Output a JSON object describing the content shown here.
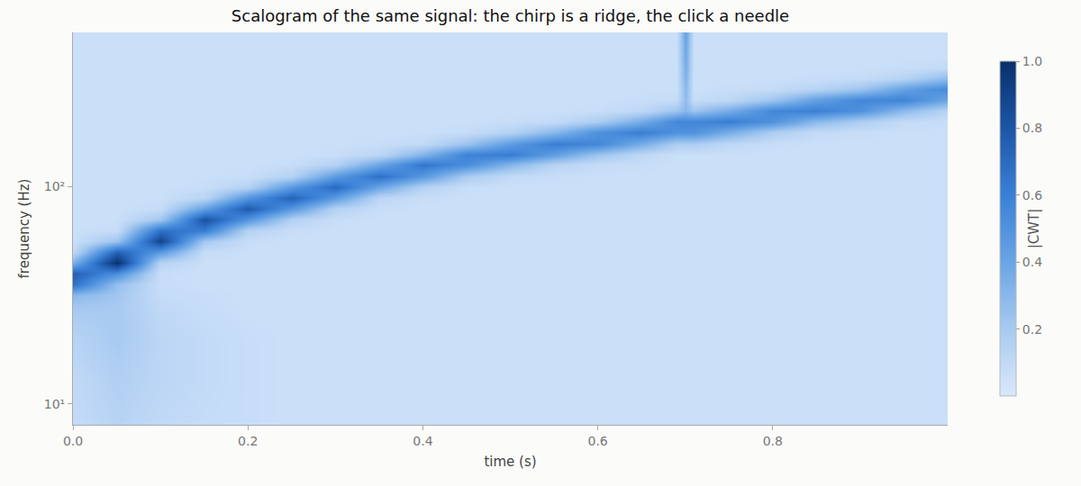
{
  "chart_data": {
    "type": "heatmap",
    "title": "Scalogram of the same signal: the chirp is a ridge, the click a needle",
    "xlabel": "time (s)",
    "ylabel": "frequency (Hz)",
    "colorbar_title": "|CWT|",
    "log": "y",
    "grid": false,
    "xlim": [
      0,
      1.0
    ],
    "ylim": [
      8,
      515
    ],
    "xticks": [
      {
        "value": 0,
        "label": "0.0"
      },
      0.2,
      0.4,
      0.6,
      0.8
    ],
    "yticks": [
      {
        "value": 10,
        "label": "10¹"
      },
      {
        "value": 100,
        "label": "10²"
      }
    ],
    "zlim": [
      0,
      1.0
    ],
    "zticks": [
      0.2,
      0.4,
      0.6,
      0.8,
      {
        "value": 1.0,
        "label": "1.0"
      }
    ],
    "x": [
      0,
      0.05,
      0.1,
      0.15,
      0.2,
      0.25,
      0.3,
      0.35,
      0.4,
      0.45,
      0.5,
      0.55,
      0.6,
      0.65,
      0.69,
      0.7,
      0.71,
      0.75,
      0.8,
      0.85,
      0.9,
      0.95,
      1.0
    ],
    "y": [
      8,
      12.6,
      20,
      25.1,
      28.2,
      31.6,
      35.5,
      39.8,
      44.7,
      50.1,
      56.2,
      63.1,
      70.8,
      79.4,
      89.1,
      100,
      112,
      126,
      141,
      158,
      178,
      200,
      224,
      251,
      282,
      316,
      355,
      398,
      447,
      501
    ],
    "z": [
      [
        0.08,
        0.14,
        0.1,
        0.08,
        0.07,
        0.06,
        0.06,
        0.06,
        0.06,
        0.06,
        0.06,
        0.06,
        0.06,
        0.06,
        0.06,
        0.06,
        0.06,
        0.06,
        0.06,
        0.06,
        0.06,
        0.06,
        0.06
      ],
      [
        0.1,
        0.16,
        0.12,
        0.09,
        0.07,
        0.06,
        0.06,
        0.06,
        0.06,
        0.06,
        0.06,
        0.06,
        0.06,
        0.06,
        0.06,
        0.06,
        0.06,
        0.06,
        0.06,
        0.06,
        0.06,
        0.06,
        0.06
      ],
      [
        0.14,
        0.2,
        0.12,
        0.09,
        0.07,
        0.06,
        0.06,
        0.06,
        0.06,
        0.06,
        0.06,
        0.06,
        0.06,
        0.06,
        0.06,
        0.06,
        0.06,
        0.06,
        0.06,
        0.06,
        0.06,
        0.06,
        0.06
      ],
      [
        0.18,
        0.2,
        0.11,
        0.08,
        0.06,
        0.06,
        0.06,
        0.06,
        0.06,
        0.06,
        0.06,
        0.06,
        0.06,
        0.06,
        0.06,
        0.06,
        0.06,
        0.06,
        0.06,
        0.06,
        0.06,
        0.06,
        0.06
      ],
      [
        0.22,
        0.2,
        0.1,
        0.07,
        0.06,
        0.06,
        0.06,
        0.06,
        0.06,
        0.06,
        0.06,
        0.06,
        0.06,
        0.06,
        0.06,
        0.06,
        0.06,
        0.06,
        0.06,
        0.06,
        0.06,
        0.06,
        0.06
      ],
      [
        0.3,
        0.22,
        0.08,
        0.07,
        0.06,
        0.06,
        0.06,
        0.06,
        0.06,
        0.06,
        0.06,
        0.06,
        0.06,
        0.06,
        0.06,
        0.06,
        0.06,
        0.06,
        0.06,
        0.06,
        0.06,
        0.06,
        0.06
      ],
      [
        0.68,
        0.26,
        0.07,
        0.06,
        0.06,
        0.06,
        0.06,
        0.06,
        0.06,
        0.06,
        0.06,
        0.06,
        0.06,
        0.06,
        0.06,
        0.06,
        0.06,
        0.06,
        0.06,
        0.06,
        0.06,
        0.06,
        0.06
      ],
      [
        0.75,
        0.52,
        0.07,
        0.06,
        0.06,
        0.06,
        0.06,
        0.06,
        0.06,
        0.06,
        0.06,
        0.06,
        0.06,
        0.06,
        0.06,
        0.06,
        0.06,
        0.06,
        0.06,
        0.06,
        0.06,
        0.06,
        0.06
      ],
      [
        0.34,
        0.99,
        0.14,
        0.06,
        0.06,
        0.06,
        0.06,
        0.06,
        0.06,
        0.06,
        0.06,
        0.06,
        0.06,
        0.06,
        0.06,
        0.06,
        0.06,
        0.06,
        0.06,
        0.06,
        0.06,
        0.06,
        0.06
      ],
      [
        0.1,
        0.74,
        0.47,
        0.08,
        0.06,
        0.06,
        0.06,
        0.06,
        0.06,
        0.06,
        0.06,
        0.06,
        0.06,
        0.06,
        0.06,
        0.06,
        0.06,
        0.06,
        0.06,
        0.06,
        0.06,
        0.06,
        0.06
      ],
      [
        0.06,
        0.24,
        0.89,
        0.21,
        0.07,
        0.06,
        0.06,
        0.06,
        0.06,
        0.06,
        0.06,
        0.06,
        0.06,
        0.06,
        0.06,
        0.06,
        0.06,
        0.06,
        0.06,
        0.06,
        0.06,
        0.06,
        0.06
      ],
      [
        0.06,
        0.08,
        0.67,
        0.62,
        0.15,
        0.07,
        0.06,
        0.06,
        0.06,
        0.06,
        0.06,
        0.06,
        0.06,
        0.06,
        0.06,
        0.06,
        0.06,
        0.06,
        0.06,
        0.06,
        0.06,
        0.06,
        0.06
      ],
      [
        0.06,
        0.06,
        0.22,
        0.82,
        0.49,
        0.15,
        0.07,
        0.06,
        0.06,
        0.06,
        0.06,
        0.06,
        0.06,
        0.06,
        0.06,
        0.06,
        0.06,
        0.06,
        0.06,
        0.06,
        0.06,
        0.06,
        0.06
      ],
      [
        0.06,
        0.06,
        0.08,
        0.43,
        0.78,
        0.47,
        0.15,
        0.07,
        0.06,
        0.06,
        0.06,
        0.06,
        0.06,
        0.06,
        0.06,
        0.06,
        0.06,
        0.06,
        0.06,
        0.06,
        0.06,
        0.06,
        0.06
      ],
      [
        0.06,
        0.06,
        0.06,
        0.13,
        0.49,
        0.74,
        0.45,
        0.12,
        0.07,
        0.06,
        0.06,
        0.06,
        0.06,
        0.06,
        0.06,
        0.06,
        0.06,
        0.06,
        0.06,
        0.06,
        0.06,
        0.06,
        0.06
      ],
      [
        0.06,
        0.06,
        0.06,
        0.07,
        0.15,
        0.47,
        0.71,
        0.4,
        0.15,
        0.07,
        0.06,
        0.06,
        0.06,
        0.06,
        0.06,
        0.06,
        0.06,
        0.06,
        0.06,
        0.06,
        0.06,
        0.06,
        0.06
      ],
      [
        0.06,
        0.06,
        0.06,
        0.06,
        0.07,
        0.15,
        0.45,
        0.68,
        0.47,
        0.19,
        0.09,
        0.07,
        0.06,
        0.06,
        0.06,
        0.06,
        0.06,
        0.06,
        0.06,
        0.06,
        0.06,
        0.06,
        0.06
      ],
      [
        0.06,
        0.06,
        0.06,
        0.06,
        0.06,
        0.07,
        0.15,
        0.4,
        0.65,
        0.53,
        0.31,
        0.14,
        0.08,
        0.07,
        0.06,
        0.06,
        0.06,
        0.06,
        0.06,
        0.06,
        0.06,
        0.06,
        0.06
      ],
      [
        0.06,
        0.06,
        0.06,
        0.06,
        0.06,
        0.06,
        0.07,
        0.12,
        0.32,
        0.59,
        0.62,
        0.44,
        0.23,
        0.11,
        0.06,
        0.06,
        0.06,
        0.06,
        0.06,
        0.06,
        0.06,
        0.06,
        0.06
      ],
      [
        0.06,
        0.06,
        0.06,
        0.06,
        0.06,
        0.06,
        0.06,
        0.07,
        0.1,
        0.24,
        0.45,
        0.61,
        0.56,
        0.36,
        0.18,
        0.18,
        0.18,
        0.11,
        0.07,
        0.06,
        0.06,
        0.06,
        0.06
      ],
      [
        0.06,
        0.06,
        0.06,
        0.06,
        0.06,
        0.06,
        0.06,
        0.06,
        0.06,
        0.08,
        0.15,
        0.3,
        0.51,
        0.61,
        0.51,
        0.51,
        0.51,
        0.36,
        0.18,
        0.09,
        0.07,
        0.06,
        0.06
      ],
      [
        0.06,
        0.06,
        0.06,
        0.06,
        0.06,
        0.06,
        0.06,
        0.06,
        0.06,
        0.06,
        0.07,
        0.09,
        0.18,
        0.36,
        0.56,
        0.56,
        0.56,
        0.61,
        0.51,
        0.3,
        0.18,
        0.09,
        0.07
      ],
      [
        0.06,
        0.06,
        0.06,
        0.06,
        0.06,
        0.06,
        0.06,
        0.06,
        0.06,
        0.06,
        0.06,
        0.06,
        0.07,
        0.11,
        0.23,
        0.3,
        0.23,
        0.36,
        0.56,
        0.6,
        0.51,
        0.29,
        0.14
      ],
      [
        0.06,
        0.06,
        0.06,
        0.06,
        0.06,
        0.06,
        0.06,
        0.06,
        0.06,
        0.06,
        0.06,
        0.06,
        0.06,
        0.07,
        0.08,
        0.28,
        0.08,
        0.11,
        0.23,
        0.43,
        0.56,
        0.58,
        0.4
      ],
      [
        0.06,
        0.06,
        0.06,
        0.06,
        0.06,
        0.06,
        0.06,
        0.06,
        0.06,
        0.06,
        0.06,
        0.06,
        0.06,
        0.06,
        0.06,
        0.3,
        0.06,
        0.07,
        0.08,
        0.14,
        0.23,
        0.42,
        0.55
      ],
      [
        0.06,
        0.06,
        0.06,
        0.06,
        0.06,
        0.06,
        0.06,
        0.06,
        0.06,
        0.06,
        0.06,
        0.06,
        0.06,
        0.06,
        0.06,
        0.33,
        0.06,
        0.06,
        0.06,
        0.07,
        0.08,
        0.14,
        0.28
      ],
      [
        0.06,
        0.06,
        0.06,
        0.06,
        0.06,
        0.06,
        0.06,
        0.06,
        0.06,
        0.06,
        0.06,
        0.06,
        0.06,
        0.06,
        0.06,
        0.36,
        0.06,
        0.06,
        0.06,
        0.06,
        0.06,
        0.07,
        0.09
      ],
      [
        0.06,
        0.06,
        0.06,
        0.06,
        0.06,
        0.06,
        0.06,
        0.06,
        0.06,
        0.06,
        0.06,
        0.06,
        0.06,
        0.06,
        0.06,
        0.38,
        0.06,
        0.06,
        0.06,
        0.06,
        0.06,
        0.06,
        0.06
      ],
      [
        0.06,
        0.06,
        0.06,
        0.06,
        0.06,
        0.06,
        0.06,
        0.06,
        0.06,
        0.06,
        0.06,
        0.06,
        0.06,
        0.06,
        0.06,
        0.4,
        0.06,
        0.06,
        0.06,
        0.06,
        0.06,
        0.06,
        0.06
      ],
      [
        0.06,
        0.06,
        0.06,
        0.06,
        0.06,
        0.06,
        0.06,
        0.06,
        0.06,
        0.06,
        0.06,
        0.06,
        0.06,
        0.06,
        0.06,
        0.42,
        0.06,
        0.06,
        0.06,
        0.06,
        0.06,
        0.06,
        0.06
      ]
    ]
  }
}
